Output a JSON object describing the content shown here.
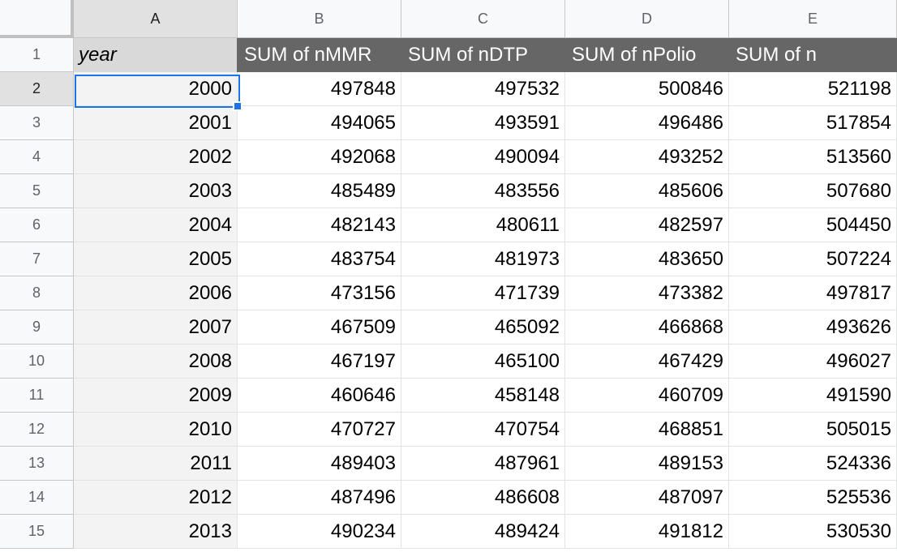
{
  "columns": [
    "A",
    "B",
    "C",
    "D",
    "E"
  ],
  "header_row": {
    "row_number": "1",
    "cells": [
      "year",
      "SUM of nMMR",
      "SUM of nDTP",
      "SUM of nPolio",
      "SUM of n"
    ]
  },
  "rows": [
    {
      "row_number": "2",
      "cells": [
        "2000",
        "497848",
        "497532",
        "500846",
        "521198"
      ]
    },
    {
      "row_number": "3",
      "cells": [
        "2001",
        "494065",
        "493591",
        "496486",
        "517854"
      ]
    },
    {
      "row_number": "4",
      "cells": [
        "2002",
        "492068",
        "490094",
        "493252",
        "513560"
      ]
    },
    {
      "row_number": "5",
      "cells": [
        "2003",
        "485489",
        "483556",
        "485606",
        "507680"
      ]
    },
    {
      "row_number": "6",
      "cells": [
        "2004",
        "482143",
        "480611",
        "482597",
        "504450"
      ]
    },
    {
      "row_number": "7",
      "cells": [
        "2005",
        "483754",
        "481973",
        "483650",
        "507224"
      ]
    },
    {
      "row_number": "8",
      "cells": [
        "2006",
        "473156",
        "471739",
        "473382",
        "497817"
      ]
    },
    {
      "row_number": "9",
      "cells": [
        "2007",
        "467509",
        "465092",
        "466868",
        "493626"
      ]
    },
    {
      "row_number": "10",
      "cells": [
        "2008",
        "467197",
        "465100",
        "467429",
        "496027"
      ]
    },
    {
      "row_number": "11",
      "cells": [
        "2009",
        "460646",
        "458148",
        "460709",
        "491590"
      ]
    },
    {
      "row_number": "12",
      "cells": [
        "2010",
        "470727",
        "470754",
        "468851",
        "505015"
      ]
    },
    {
      "row_number": "13",
      "cells": [
        "2011",
        "489403",
        "487961",
        "489153",
        "524336"
      ]
    },
    {
      "row_number": "14",
      "cells": [
        "2012",
        "487496",
        "486608",
        "487097",
        "525536"
      ]
    },
    {
      "row_number": "15",
      "cells": [
        "2013",
        "490234",
        "489424",
        "491812",
        "530530"
      ]
    }
  ],
  "selection": {
    "active_cell": "A2",
    "active_column": "A",
    "active_row": "2"
  },
  "colors": {
    "pivot_header_bg": "#666666",
    "pivot_header_text": "#ffffff",
    "row_label_bg": "#f3f3f3",
    "selection_border": "#1a73e8"
  }
}
